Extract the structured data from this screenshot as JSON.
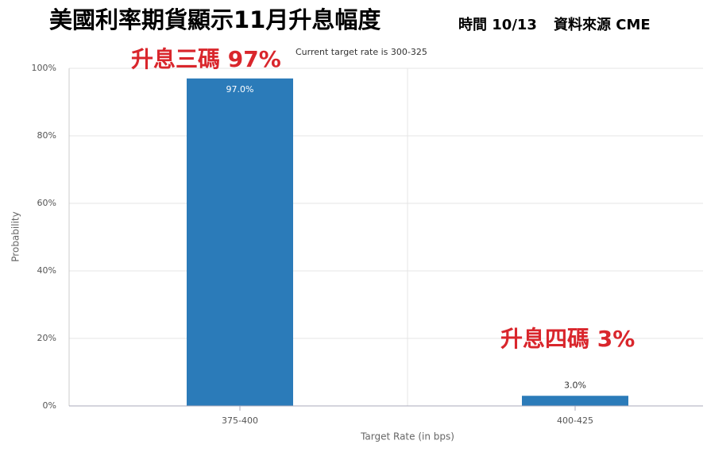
{
  "chart_data": {
    "type": "bar",
    "title": "美國利率期貨顯示11月升息幅度",
    "date_note": "時間 10/13",
    "source": "資料來源 CME",
    "subtitle": "Current target rate is 300-325",
    "annotations": [
      "升息三碼 97%",
      "升息四碼 3%"
    ],
    "x_label": "Target Rate (in bps)",
    "y_label": "Probability",
    "categories": [
      "375-400",
      "400-425"
    ],
    "values": [
      97.0,
      3.0
    ],
    "value_labels": [
      "97.0%",
      "3.0%"
    ],
    "color": "#2b7bb9",
    "ylim": [
      0,
      100
    ],
    "yticks": [
      {
        "value": 0,
        "label": "0%"
      },
      {
        "value": 20,
        "label": "20%"
      },
      {
        "value": 40,
        "label": "40%"
      },
      {
        "value": 60,
        "label": "60%"
      },
      {
        "value": 80,
        "label": "80%"
      },
      {
        "value": 100,
        "label": "100%"
      }
    ],
    "grid": true
  }
}
